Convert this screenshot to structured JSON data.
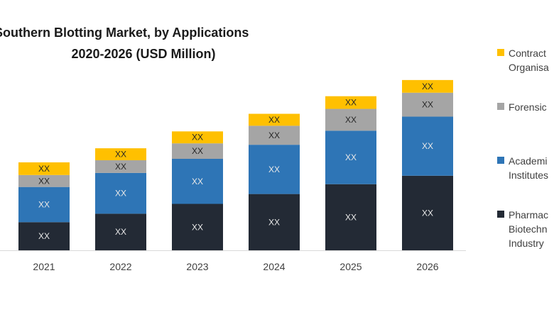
{
  "chart_data": {
    "type": "bar",
    "stacked": true,
    "title_lines": [
      "al Southern Blotting Market, by Applications",
      "2020-2026  (USD Million)"
    ],
    "categories": [
      "2021",
      "2022",
      "2023",
      "2024",
      "2025",
      "2026"
    ],
    "series": [
      {
        "name": "Pharmaceutical & Biotechnology Industry",
        "legend_lines": [
          "Pharmac",
          "Biotechn",
          "Industry"
        ],
        "color": "#232a35",
        "values": [
          40,
          52,
          66,
          80,
          94,
          106
        ],
        "labels": [
          "XX",
          "XX",
          "XX",
          "XX",
          "XX",
          "XX"
        ]
      },
      {
        "name": "Academic & Research Institutes",
        "legend_lines": [
          "Academi",
          "Institutes"
        ],
        "color": "#2e75b6",
        "values": [
          50,
          58,
          64,
          70,
          76,
          84
        ],
        "labels": [
          "XX",
          "XX",
          "XX",
          "XX",
          "XX",
          "XX"
        ]
      },
      {
        "name": "Forensic",
        "legend_lines": [
          "Forensic"
        ],
        "color": "#a5a5a5",
        "values": [
          17,
          18,
          22,
          27,
          31,
          34
        ],
        "labels": [
          "XX",
          "XX",
          "XX",
          "XX",
          "XX",
          "XX"
        ]
      },
      {
        "name": "Contract Research Organisations",
        "legend_lines": [
          "Contract",
          "Organisa"
        ],
        "color": "#ffc000",
        "values": [
          18,
          17,
          17,
          17,
          18,
          18
        ],
        "labels": [
          "XX",
          "XX",
          "XX",
          "XX",
          "XX",
          "XX"
        ]
      }
    ],
    "ylim": [
      0,
      260
    ],
    "grid": false,
    "legend_position": "right"
  }
}
